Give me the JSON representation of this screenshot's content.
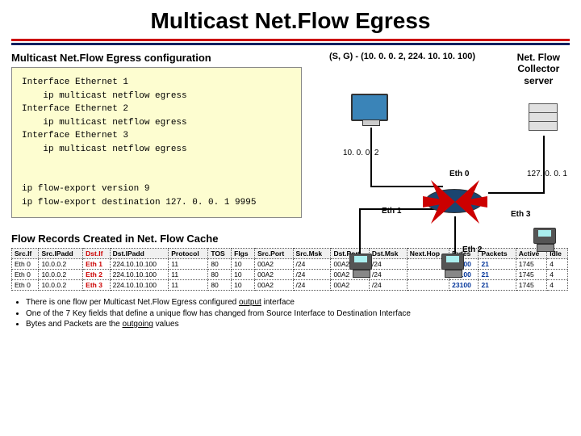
{
  "title": "Multicast Net.Flow Egress",
  "config": {
    "heading": "Multicast Net.Flow Egress configuration",
    "lines": "Interface Ethernet 1\n    ip multicast netflow egress\nInterface Ethernet 2\n    ip multicast netflow egress\nInterface Ethernet 3\n    ip multicast netflow egress\n\n\nip flow-export version 9\nip flow-export destination 127. 0. 0. 1 9995"
  },
  "diagram": {
    "sg_label": "(S, G) - (10. 0. 0. 2, 224. 10. 10. 100)",
    "collector_label": "Net. Flow\nCollector\nserver",
    "ip_src": "10. 0. 0. 2",
    "ip_dst": "127. 0. 0. 1",
    "eth0": "Eth 0",
    "eth1": "Eth 1",
    "eth2": "Eth 2",
    "eth3": "Eth 3"
  },
  "table": {
    "heading": "Flow Records Created in Net. Flow Cache",
    "headers": [
      "Src.If",
      "Src.IPadd",
      "Dst.If",
      "Dst.IPadd",
      "Protocol",
      "TOS",
      "Flgs",
      "Src.Port",
      "Src.Msk",
      "Dst.Port",
      "Dst.Msk",
      "Next.Hop",
      "Bytes",
      "Packets",
      "Active",
      "Idle"
    ],
    "rows": [
      [
        "Eth 0",
        "10.0.0.2",
        "Eth 1",
        "224.10.10.100",
        "11",
        "80",
        "10",
        "00A2",
        "/24",
        "00A2",
        "/24",
        "",
        "23100",
        "21",
        "1745",
        "4"
      ],
      [
        "Eth 0",
        "10.0.0.2",
        "Eth 2",
        "224.10.10.100",
        "11",
        "80",
        "10",
        "00A2",
        "/24",
        "00A2",
        "/24",
        "",
        "23100",
        "21",
        "1745",
        "4"
      ],
      [
        "Eth 0",
        "10.0.0.2",
        "Eth 3",
        "224.10.10.100",
        "11",
        "80",
        "10",
        "00A2",
        "/24",
        "00A2",
        "/24",
        "",
        "23100",
        "21",
        "1745",
        "4"
      ]
    ],
    "red_columns": [
      2
    ],
    "blue_columns": [
      12,
      13
    ]
  },
  "bullets": [
    "There is one flow per Multicast Net.Flow Egress configured <u>output</u> interface",
    "One of the 7 Key fields that define a unique flow has changed from Source Interface to Destination Interface",
    "Bytes and Packets are the <u>outgoing</u> values"
  ],
  "colors": {
    "accent_red": "#cc0000",
    "accent_blue": "#002060",
    "config_bg": "#fdfdd0",
    "router_blue": "#1a4570"
  }
}
